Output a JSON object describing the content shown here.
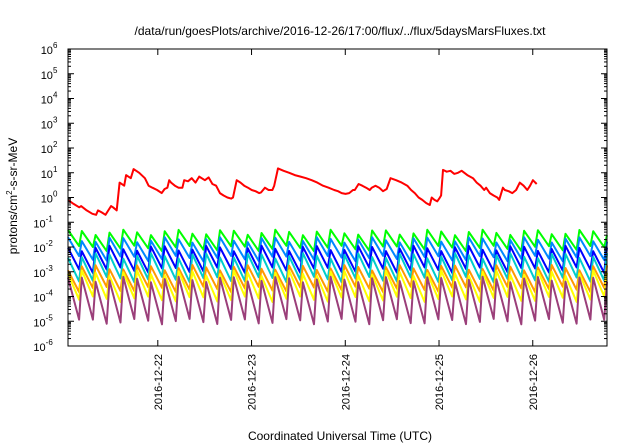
{
  "chart_data": {
    "type": "line",
    "title": "/data/run/goesPlots/archive/2016-12-26/17:00/flux/../flux/5daysMarsFluxes.txt",
    "xlabel": "Coordinated Universal Time (UTC)",
    "ylabel_parts": [
      "protons/cm",
      "2",
      "-s-sr-MeV"
    ],
    "y_scale": "log",
    "ylim_exp": [
      -6,
      6
    ],
    "y_ticks": [
      {
        "base": "10",
        "exp": "-6"
      },
      {
        "base": "10",
        "exp": "-5"
      },
      {
        "base": "10",
        "exp": "-4"
      },
      {
        "base": "10",
        "exp": "-3"
      },
      {
        "base": "10",
        "exp": "-2"
      },
      {
        "base": "10",
        "exp": "-1"
      },
      {
        "base": "10",
        "exp": "0"
      },
      {
        "base": "10",
        "exp": "1"
      },
      {
        "base": "10",
        "exp": "2"
      },
      {
        "base": "10",
        "exp": "3"
      },
      {
        "base": "10",
        "exp": "4"
      },
      {
        "base": "10",
        "exp": "5"
      },
      {
        "base": "10",
        "exp": "6"
      }
    ],
    "x_range_days": [
      "2016-12-21 01:00",
      "2016-12-26 19:00"
    ],
    "x_ticks": [
      "2016-12-22",
      "2016-12-23",
      "2016-12-24",
      "2016-12-25",
      "2016-12-26"
    ],
    "grid": false,
    "series": [
      {
        "color": "#ff0000",
        "points": [
          [
            0.0,
            0.8
          ],
          [
            0.06,
            0.55
          ],
          [
            0.12,
            0.4
          ],
          [
            0.14,
            0.45
          ],
          [
            0.2,
            0.3
          ],
          [
            0.26,
            0.22
          ],
          [
            0.3,
            0.2
          ],
          [
            0.32,
            0.3
          ],
          [
            0.36,
            0.25
          ],
          [
            0.4,
            0.2
          ],
          [
            0.43,
            0.3
          ],
          [
            0.46,
            0.45
          ],
          [
            0.48,
            0.4
          ],
          [
            0.52,
            0.3
          ],
          [
            0.55,
            4.0
          ],
          [
            0.6,
            3.0
          ],
          [
            0.62,
            8.0
          ],
          [
            0.67,
            6.0
          ],
          [
            0.7,
            14.0
          ],
          [
            0.76,
            10.0
          ],
          [
            0.82,
            6.0
          ],
          [
            0.86,
            3.0
          ],
          [
            0.9,
            2.5
          ],
          [
            0.95,
            2.0
          ],
          [
            1.0,
            1.5
          ],
          [
            1.03,
            2.2
          ],
          [
            1.06,
            2.5
          ],
          [
            1.08,
            5.0
          ],
          [
            1.1,
            4.0
          ],
          [
            1.14,
            3.0
          ],
          [
            1.18,
            2.5
          ],
          [
            1.22,
            2.5
          ],
          [
            1.24,
            5.0
          ],
          [
            1.28,
            4.5
          ],
          [
            1.32,
            6.0
          ],
          [
            1.36,
            4.0
          ],
          [
            1.4,
            7.0
          ],
          [
            1.46,
            5.0
          ],
          [
            1.5,
            6.5
          ],
          [
            1.54,
            3.5
          ],
          [
            1.58,
            3.0
          ],
          [
            1.62,
            1.5
          ],
          [
            1.66,
            1.2
          ],
          [
            1.7,
            1.0
          ],
          [
            1.74,
            0.9
          ],
          [
            1.76,
            1.0
          ],
          [
            1.8,
            5.0
          ],
          [
            1.84,
            4.0
          ],
          [
            1.88,
            3.0
          ],
          [
            1.92,
            2.5
          ],
          [
            1.96,
            2.0
          ],
          [
            2.0,
            1.8
          ],
          [
            2.04,
            1.5
          ],
          [
            2.06,
            1.6
          ],
          [
            2.1,
            2.5
          ],
          [
            2.14,
            2.0
          ],
          [
            2.18,
            2.0
          ],
          [
            2.2,
            3.0
          ],
          [
            2.24,
            15.0
          ],
          [
            2.3,
            12.0
          ],
          [
            2.36,
            10.0
          ],
          [
            2.42,
            8.0
          ],
          [
            2.48,
            7.0
          ],
          [
            2.54,
            6.0
          ],
          [
            2.6,
            5.0
          ],
          [
            2.66,
            4.0
          ],
          [
            2.72,
            3.0
          ],
          [
            2.78,
            2.5
          ],
          [
            2.84,
            2.0
          ],
          [
            2.88,
            1.8
          ],
          [
            2.92,
            1.5
          ],
          [
            2.96,
            1.4
          ],
          [
            3.0,
            1.5
          ],
          [
            3.04,
            2.0
          ],
          [
            3.06,
            2.0
          ],
          [
            3.1,
            3.5
          ],
          [
            3.14,
            3.0
          ],
          [
            3.18,
            2.5
          ],
          [
            3.22,
            2.0
          ],
          [
            3.24,
            2.5
          ],
          [
            3.28,
            3.0
          ],
          [
            3.32,
            2.5
          ],
          [
            3.36,
            1.8
          ],
          [
            3.4,
            2.2
          ],
          [
            3.44,
            6.0
          ],
          [
            3.5,
            5.0
          ],
          [
            3.56,
            4.0
          ],
          [
            3.62,
            3.0
          ],
          [
            3.66,
            2.0
          ],
          [
            3.7,
            1.5
          ],
          [
            3.74,
            1.0
          ],
          [
            3.78,
            0.8
          ],
          [
            3.82,
            0.6
          ],
          [
            3.86,
            0.5
          ],
          [
            3.88,
            1.0
          ],
          [
            3.91,
            0.8
          ],
          [
            3.94,
            0.7
          ],
          [
            3.96,
            0.9
          ],
          [
            3.98,
            1.2
          ],
          [
            4.0,
            13.0
          ],
          [
            4.04,
            11.0
          ],
          [
            4.08,
            12.0
          ],
          [
            4.12,
            9.0
          ],
          [
            4.16,
            10.0
          ],
          [
            4.2,
            12.0
          ],
          [
            4.26,
            8.0
          ],
          [
            4.32,
            6.0
          ],
          [
            4.36,
            4.0
          ],
          [
            4.4,
            3.0
          ],
          [
            4.44,
            2.0
          ],
          [
            4.46,
            2.5
          ],
          [
            4.5,
            1.5
          ],
          [
            4.54,
            1.2
          ],
          [
            4.58,
            1.0
          ],
          [
            4.6,
            0.8
          ],
          [
            4.64,
            2.5
          ],
          [
            4.66,
            2.0
          ],
          [
            4.7,
            1.8
          ],
          [
            4.74,
            1.5
          ],
          [
            4.78,
            2.0
          ],
          [
            4.82,
            4.0
          ],
          [
            4.86,
            3.0
          ],
          [
            4.9,
            2.0
          ],
          [
            4.93,
            3.0
          ],
          [
            4.96,
            5.0
          ],
          [
            5.0,
            3.5
          ]
        ]
      },
      {
        "color": "#00ff00",
        "baseline": 0.009,
        "peak": 0.04,
        "cycles": 39
      },
      {
        "color": "#0088ff",
        "baseline": 0.0035,
        "peak": 0.02,
        "cycles": 39
      },
      {
        "color": "#0000ff",
        "baseline": 0.0012,
        "peak": 0.009,
        "cycles": 39
      },
      {
        "color": "#00cccc",
        "baseline": 0.0005,
        "peak": 0.0045,
        "cycles": 39
      },
      {
        "color": "#ff9900",
        "baseline": 0.0002,
        "peak": 0.0015,
        "cycles": 39
      },
      {
        "color": "#ffff00",
        "baseline": 8e-05,
        "peak": 0.0009,
        "cycles": 39
      },
      {
        "color": "#9b3f7a",
        "baseline": 1e-05,
        "peak": 0.0005,
        "cycles": 39
      }
    ]
  }
}
